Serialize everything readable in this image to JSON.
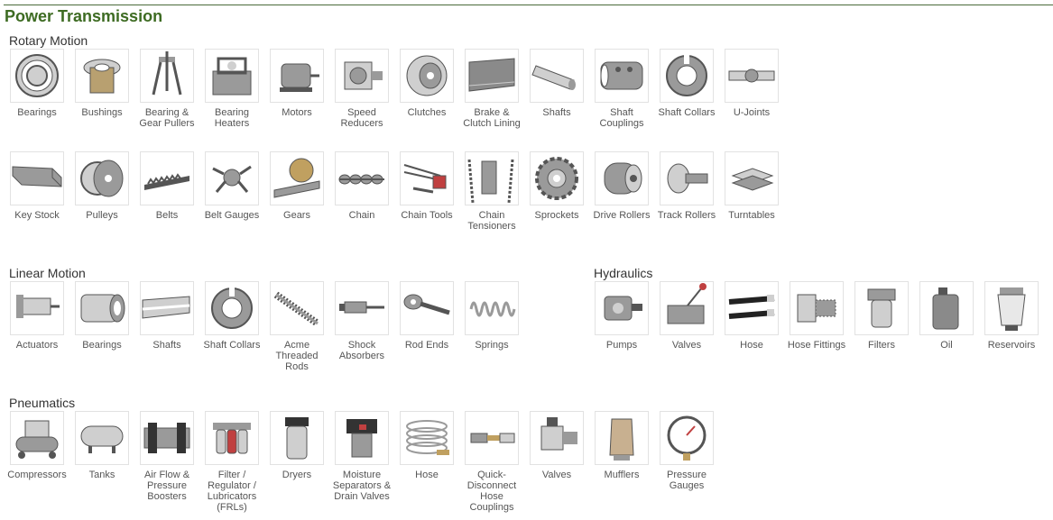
{
  "page_title": "Power Transmission",
  "sections": {
    "rotary_motion": {
      "title": "Rotary Motion",
      "items": [
        {
          "label": "Bearings",
          "icon": "ball-bearing-icon"
        },
        {
          "label": "Bushings",
          "icon": "flanged-bushing-icon"
        },
        {
          "label": "Bearing & Gear Pullers",
          "icon": "gear-puller-icon"
        },
        {
          "label": "Bearing Heaters",
          "icon": "bearing-heater-icon"
        },
        {
          "label": "Motors",
          "icon": "electric-motor-icon"
        },
        {
          "label": "Speed Reducers",
          "icon": "gearbox-icon"
        },
        {
          "label": "Clutches",
          "icon": "clutch-icon"
        },
        {
          "label": "Brake & Clutch Lining",
          "icon": "lining-strip-icon"
        },
        {
          "label": "Shafts",
          "icon": "round-shaft-icon"
        },
        {
          "label": "Shaft Couplings",
          "icon": "shaft-coupling-icon"
        },
        {
          "label": "Shaft Collars",
          "icon": "shaft-collar-icon"
        },
        {
          "label": "U-Joints",
          "icon": "u-joint-icon"
        },
        {
          "label": "Key Stock",
          "icon": "key-stock-icon"
        },
        {
          "label": "Pulleys",
          "icon": "pulley-icon"
        },
        {
          "label": "Belts",
          "icon": "timing-belt-icon"
        },
        {
          "label": "Belt Gauges",
          "icon": "belt-gauge-icon"
        },
        {
          "label": "Gears",
          "icon": "rack-gear-icon"
        },
        {
          "label": "Chain",
          "icon": "roller-chain-icon"
        },
        {
          "label": "Chain Tools",
          "icon": "chain-tool-icon"
        },
        {
          "label": "Chain Tensioners",
          "icon": "chain-tensioner-icon"
        },
        {
          "label": "Sprockets",
          "icon": "sprocket-icon"
        },
        {
          "label": "Drive Rollers",
          "icon": "drive-roller-icon"
        },
        {
          "label": "Track Rollers",
          "icon": "track-roller-icon"
        },
        {
          "label": "Turntables",
          "icon": "turntable-icon"
        }
      ]
    },
    "linear_motion": {
      "title": "Linear Motion",
      "items": [
        {
          "label": "Actuators",
          "icon": "actuator-icon"
        },
        {
          "label": "Bearings",
          "icon": "linear-bearing-icon"
        },
        {
          "label": "Shafts",
          "icon": "linear-shaft-icon"
        },
        {
          "label": "Shaft Collars",
          "icon": "shaft-collar-icon"
        },
        {
          "label": "Acme Threaded Rods",
          "icon": "threaded-rod-icon"
        },
        {
          "label": "Shock Absorbers",
          "icon": "shock-absorber-icon"
        },
        {
          "label": "Rod Ends",
          "icon": "rod-end-icon"
        },
        {
          "label": "Springs",
          "icon": "spring-icon"
        }
      ]
    },
    "hydraulics": {
      "title": "Hydraulics",
      "items": [
        {
          "label": "Pumps",
          "icon": "hydraulic-pump-icon"
        },
        {
          "label": "Valves",
          "icon": "hydraulic-valve-icon"
        },
        {
          "label": "Hose",
          "icon": "hydraulic-hose-icon"
        },
        {
          "label": "Hose Fittings",
          "icon": "hose-fitting-icon"
        },
        {
          "label": "Filters",
          "icon": "filter-icon"
        },
        {
          "label": "Oil",
          "icon": "oil-jug-icon"
        },
        {
          "label": "Reservoirs",
          "icon": "reservoir-icon"
        }
      ]
    },
    "pneumatics": {
      "title": "Pneumatics",
      "items": [
        {
          "label": "Compressors",
          "icon": "air-compressor-icon"
        },
        {
          "label": "Tanks",
          "icon": "air-tank-icon"
        },
        {
          "label": "Air Flow & Pressure Boosters",
          "icon": "pressure-booster-icon"
        },
        {
          "label": "Filter / Regulator / Lubricators (FRLs)",
          "icon": "frl-icon"
        },
        {
          "label": "Dryers",
          "icon": "dryer-icon"
        },
        {
          "label": "Moisture Separators & Drain Valves",
          "icon": "drain-valve-icon"
        },
        {
          "label": "Hose",
          "icon": "coiled-hose-icon"
        },
        {
          "label": "Quick-Disconnect Hose Couplings",
          "icon": "quick-coupling-icon"
        },
        {
          "label": "Valves",
          "icon": "pneumatic-valve-icon"
        },
        {
          "label": "Mufflers",
          "icon": "muffler-icon"
        },
        {
          "label": "Pressure Gauges",
          "icon": "pressure-gauge-icon"
        }
      ]
    }
  },
  "colors": {
    "title_green": "#3d6b22",
    "rule_green": "#4a6b3a",
    "label_gray": "#555555",
    "metal": "#9a9a9a"
  }
}
